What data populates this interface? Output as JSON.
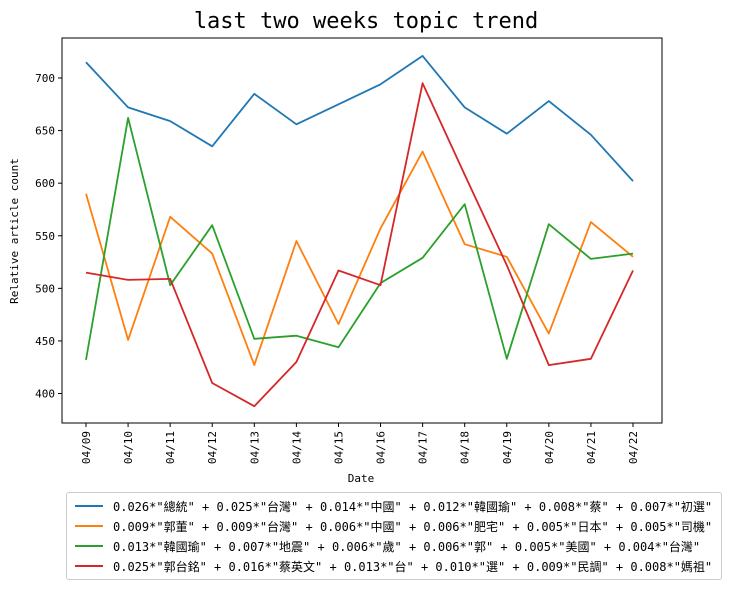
{
  "chart_data": {
    "type": "line",
    "title": "last two weeks topic trend",
    "xlabel": "Date",
    "ylabel": "Relative article count",
    "categories": [
      "04/09",
      "04/10",
      "04/11",
      "04/12",
      "04/13",
      "04/14",
      "04/15",
      "04/16",
      "04/17",
      "04/18",
      "04/19",
      "04/20",
      "04/21",
      "04/22"
    ],
    "ylim": [
      372,
      738
    ],
    "yticks": [
      400,
      450,
      500,
      550,
      600,
      650,
      700
    ],
    "grid": false,
    "legend_position": "bottom",
    "series": [
      {
        "name": "0.026*\"總統\" + 0.025*\"台灣\" + 0.014*\"中國\" + 0.012*\"韓國瑜\" + 0.008*\"蔡\" + 0.007*\"初選\"",
        "color": "#1f77b4",
        "values": [
          715,
          672,
          659,
          635,
          685,
          656,
          675,
          694,
          721,
          672,
          647,
          678,
          646,
          602
        ]
      },
      {
        "name": "0.009*\"郭董\" + 0.009*\"台灣\" + 0.006*\"中國\" + 0.006*\"肥宅\" + 0.005*\"日本\" + 0.005*\"司機\"",
        "color": "#ff7f0e",
        "values": [
          590,
          451,
          568,
          533,
          427,
          545,
          466,
          557,
          630,
          542,
          530,
          457,
          563,
          530
        ]
      },
      {
        "name": "0.013*\"韓國瑜\" + 0.007*\"地震\" + 0.006*\"歲\" + 0.006*\"郭\" + 0.005*\"美國\" + 0.004*\"台灣\"",
        "color": "#2ca02c",
        "values": [
          432,
          662,
          503,
          560,
          452,
          455,
          444,
          505,
          529,
          580,
          433,
          561,
          528,
          533
        ]
      },
      {
        "name": "0.025*\"郭台銘\" + 0.016*\"蔡英文\" + 0.013*\"台\" + 0.010*\"選\" + 0.009*\"民調\" + 0.008*\"媽祖\"",
        "color": "#d62728",
        "values": [
          515,
          508,
          509,
          410,
          388,
          430,
          517,
          503,
          695,
          608,
          522,
          427,
          433,
          517
        ]
      }
    ]
  }
}
